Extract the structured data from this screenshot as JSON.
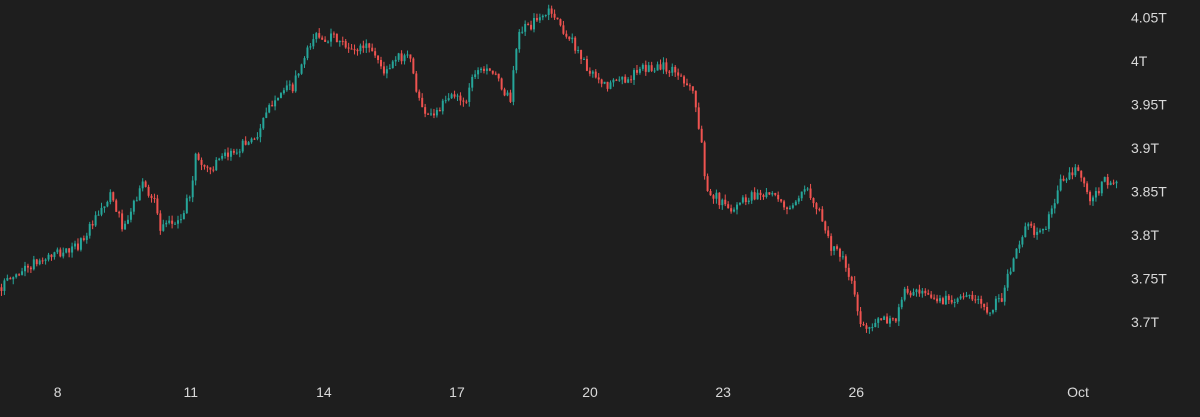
{
  "chart_data": {
    "type": "candlestick",
    "title": "",
    "xlabel": "",
    "ylabel": "",
    "y_unit": "T",
    "ylim": [
      3.645,
      4.07
    ],
    "grid": false,
    "legend": "none",
    "colors": {
      "background": "#1e1e1e",
      "up": "#26a69a",
      "down": "#ef5350",
      "text": "#d9d9d9"
    },
    "y_ticks": [
      {
        "value": 4.05,
        "label": "4.05T"
      },
      {
        "value": 4.0,
        "label": "4T"
      },
      {
        "value": 3.95,
        "label": "3.95T"
      },
      {
        "value": 3.9,
        "label": "3.9T"
      },
      {
        "value": 3.85,
        "label": "3.85T"
      },
      {
        "value": 3.8,
        "label": "3.8T"
      },
      {
        "value": 3.75,
        "label": "3.75T"
      },
      {
        "value": 3.7,
        "label": "3.7T"
      }
    ],
    "x_range": [
      6.7,
      31.9
    ],
    "x_ticks": [
      {
        "value": 8,
        "label": "8"
      },
      {
        "value": 11,
        "label": "11"
      },
      {
        "value": 14,
        "label": "14"
      },
      {
        "value": 17,
        "label": "17"
      },
      {
        "value": 20,
        "label": "20"
      },
      {
        "value": 23,
        "label": "23"
      },
      {
        "value": 26,
        "label": "26"
      },
      {
        "value": 31,
        "label": "Oct"
      }
    ],
    "series": [
      {
        "type": "candlestick",
        "price_path": [
          [
            6.7,
            3.74
          ],
          [
            7.2,
            3.76
          ],
          [
            7.8,
            3.775
          ],
          [
            8.4,
            3.785
          ],
          [
            8.9,
            3.82
          ],
          [
            9.2,
            3.845
          ],
          [
            9.5,
            3.805
          ],
          [
            9.9,
            3.86
          ],
          [
            10.2,
            3.84
          ],
          [
            10.3,
            3.805
          ],
          [
            10.8,
            3.82
          ],
          [
            11.0,
            3.85
          ],
          [
            11.1,
            3.89
          ],
          [
            11.4,
            3.875
          ],
          [
            11.8,
            3.89
          ],
          [
            12.2,
            3.905
          ],
          [
            12.5,
            3.915
          ],
          [
            12.9,
            3.96
          ],
          [
            13.3,
            3.97
          ],
          [
            13.8,
            4.03
          ],
          [
            14.3,
            4.025
          ],
          [
            14.6,
            4.01
          ],
          [
            15.0,
            4.02
          ],
          [
            15.4,
            3.985
          ],
          [
            15.6,
            4.0
          ],
          [
            15.9,
            4.01
          ],
          [
            16.2,
            3.945
          ],
          [
            16.5,
            3.94
          ],
          [
            16.9,
            3.96
          ],
          [
            17.2,
            3.955
          ],
          [
            17.4,
            3.99
          ],
          [
            17.7,
            3.995
          ],
          [
            18.0,
            3.97
          ],
          [
            18.2,
            3.955
          ],
          [
            18.4,
            4.035
          ],
          [
            18.8,
            4.045
          ],
          [
            19.1,
            4.06
          ],
          [
            19.4,
            4.035
          ],
          [
            19.7,
            4.015
          ],
          [
            20.0,
            3.985
          ],
          [
            20.3,
            3.97
          ],
          [
            20.8,
            3.98
          ],
          [
            21.2,
            3.99
          ],
          [
            21.6,
            3.995
          ],
          [
            22.0,
            3.985
          ],
          [
            22.3,
            3.97
          ],
          [
            22.5,
            3.91
          ],
          [
            22.6,
            3.86
          ],
          [
            22.8,
            3.845
          ],
          [
            23.1,
            3.83
          ],
          [
            23.6,
            3.845
          ],
          [
            24.0,
            3.85
          ],
          [
            24.3,
            3.835
          ],
          [
            24.6,
            3.83
          ],
          [
            24.9,
            3.855
          ],
          [
            25.2,
            3.825
          ],
          [
            25.4,
            3.79
          ],
          [
            25.7,
            3.77
          ],
          [
            25.9,
            3.745
          ],
          [
            26.1,
            3.695
          ],
          [
            26.5,
            3.7
          ],
          [
            26.9,
            3.705
          ],
          [
            27.1,
            3.735
          ],
          [
            27.5,
            3.73
          ],
          [
            27.9,
            3.725
          ],
          [
            28.3,
            3.73
          ],
          [
            28.7,
            3.725
          ],
          [
            29.0,
            3.715
          ],
          [
            29.3,
            3.73
          ],
          [
            29.5,
            3.765
          ],
          [
            29.8,
            3.81
          ],
          [
            30.2,
            3.8
          ],
          [
            30.6,
            3.86
          ],
          [
            31.0,
            3.875
          ],
          [
            31.3,
            3.835
          ],
          [
            31.6,
            3.865
          ],
          [
            31.9,
            3.855
          ]
        ]
      }
    ]
  }
}
